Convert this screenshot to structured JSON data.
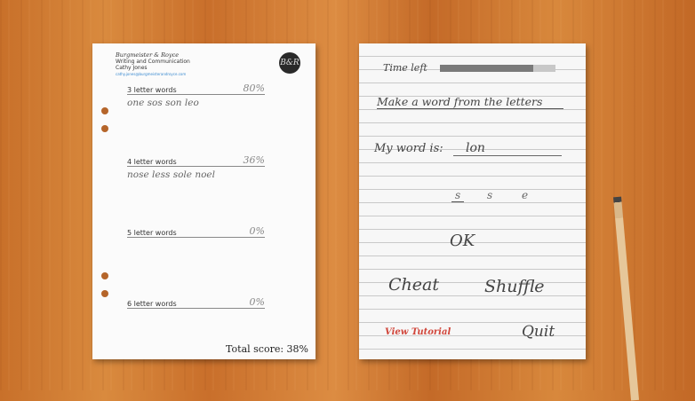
{
  "scoresheet": {
    "company": "Burgmeister & Royce",
    "department": "Writing and Communication",
    "name": "Cathy Jones",
    "email": "cathy.jones@burgmeisterandroyce.com",
    "logo": "B&R",
    "sections": [
      {
        "label": "3 letter words",
        "percent": "80%",
        "words": "one sos son leo"
      },
      {
        "label": "4 letter words",
        "percent": "36%",
        "words": "nose less sole noel"
      },
      {
        "label": "5 letter words",
        "percent": "0%",
        "words": ""
      },
      {
        "label": "6 letter words",
        "percent": "0%",
        "words": ""
      }
    ],
    "total": "Total score: 38%"
  },
  "game": {
    "time_label": "Time left",
    "time_remaining_fraction": 0.81,
    "instruction": "Make a word from the letters",
    "word_label": "My word is:",
    "current_word": "lon",
    "letters": [
      "s",
      "s",
      "e"
    ],
    "ok": "OK",
    "cheat": "Cheat",
    "shuffle": "Shuffle",
    "tutorial": "View Tutorial",
    "quit": "Quit"
  },
  "colors": {
    "tutorial": "#d0453a",
    "time_fill": "#7a7a7a"
  }
}
